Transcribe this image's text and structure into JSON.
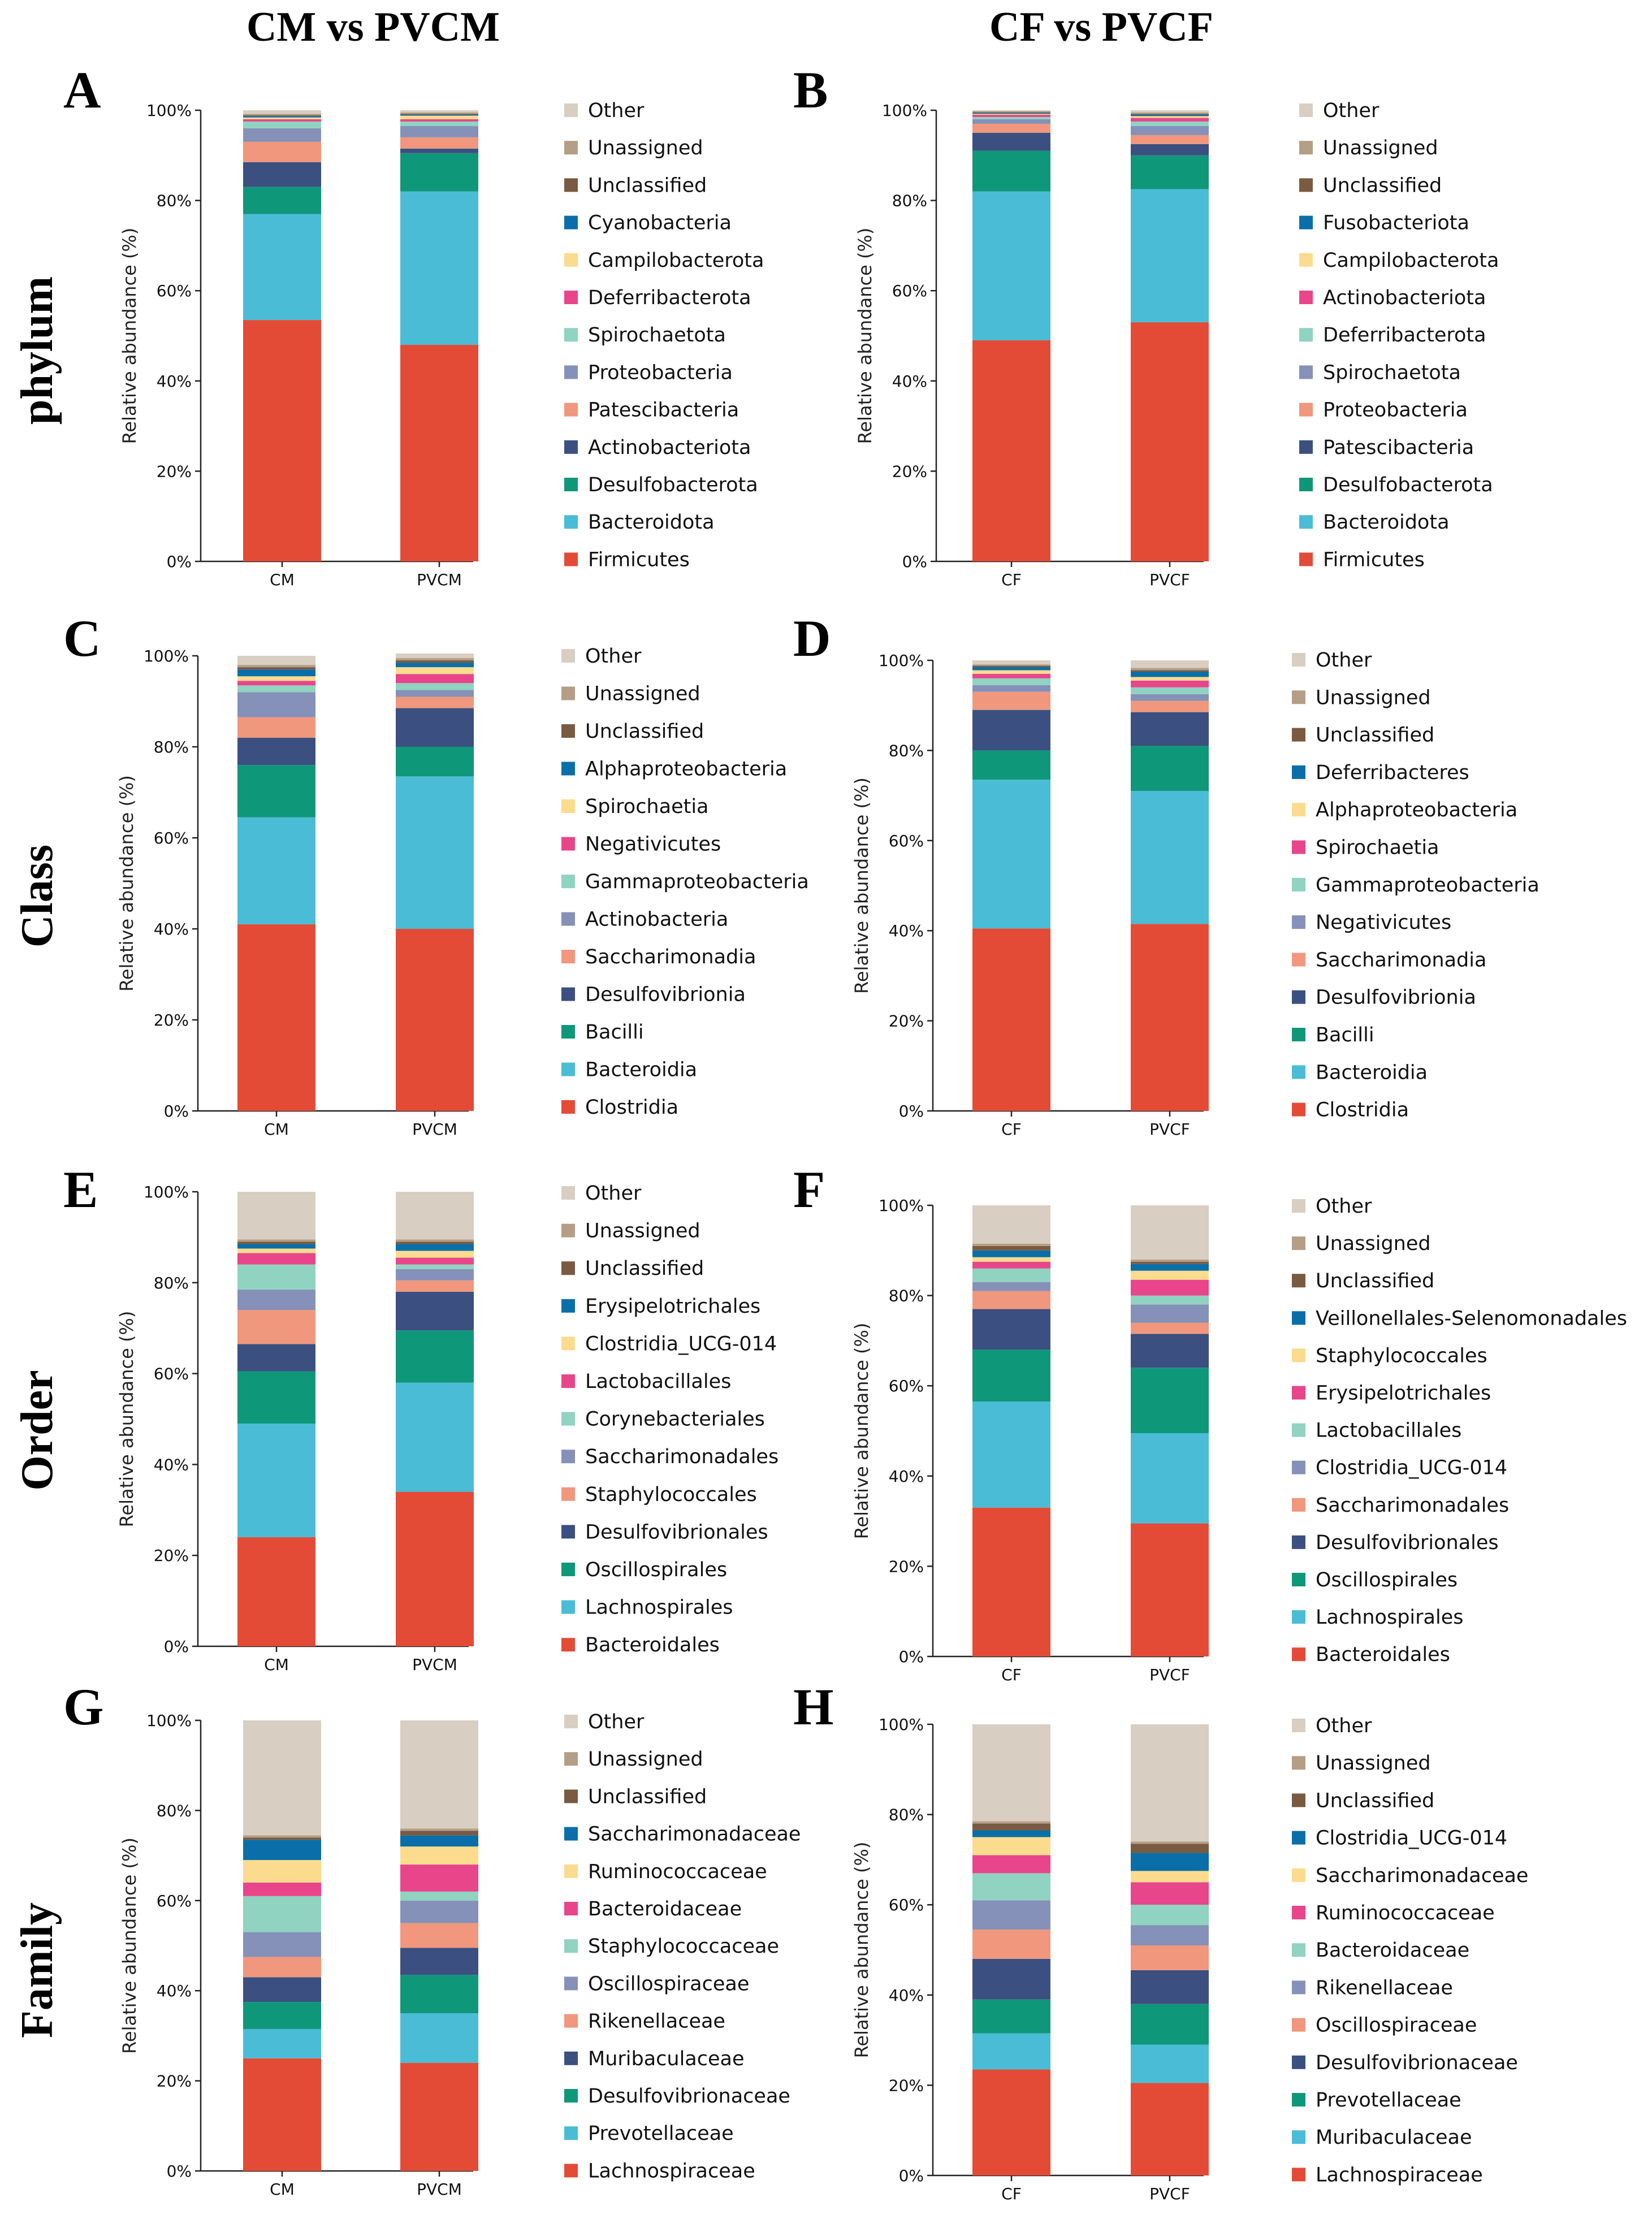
{
  "column_titles": [
    "CM vs PVCM",
    "CF vs PVCF"
  ],
  "row_labels": [
    "phylum",
    "Class",
    "Order",
    "Family"
  ],
  "colors": {
    "Other": "#d8cec1",
    "Unassigned": "#b59e86",
    "Unclassified": "#7a5a40",
    "c9": "#0a6fa8",
    "c8": "#fbdc8e",
    "c7": "#e8458b",
    "c6": "#8fd3c0",
    "c5": "#8591b8",
    "c4": "#f0977d",
    "c3": "#3b4f81",
    "c2": "#0f9779",
    "c1": "#4bbcd6",
    "c0": "#e34b37"
  },
  "chart_data": [
    {
      "panel": "A",
      "type": "bar",
      "stacked": true,
      "ylabel": "Relative abundance (%)",
      "yticks": [
        "0%",
        "20%",
        "40%",
        "60%",
        "80%",
        "100%"
      ],
      "ylim": [
        0,
        100
      ],
      "categories": [
        "CM",
        "PVCM"
      ],
      "series": [
        {
          "name": "Firmicutes",
          "values": [
            53.5,
            48.0
          ]
        },
        {
          "name": "Bacteroidota",
          "values": [
            23.5,
            34.0
          ]
        },
        {
          "name": "Desulfobacterota",
          "values": [
            6.0,
            8.5
          ]
        },
        {
          "name": "Actinobacteriota",
          "values": [
            5.5,
            1.0
          ]
        },
        {
          "name": "Patescibacteria",
          "values": [
            4.5,
            2.5
          ]
        },
        {
          "name": "Proteobacteria",
          "values": [
            3.0,
            2.5
          ]
        },
        {
          "name": "Spirochaetota",
          "values": [
            1.5,
            1.0
          ]
        },
        {
          "name": "Deferribacterota",
          "values": [
            0.5,
            0.5
          ]
        },
        {
          "name": "Campilobacterota",
          "values": [
            0.4,
            0.8
          ]
        },
        {
          "name": "Cyanobacteria",
          "values": [
            0.3,
            0.2
          ]
        },
        {
          "name": "Unclassified",
          "values": [
            0.2,
            0.2
          ]
        },
        {
          "name": "Unassigned",
          "values": [
            0.3,
            0.3
          ]
        },
        {
          "name": "Other",
          "values": [
            0.8,
            0.5
          ]
        }
      ]
    },
    {
      "panel": "B",
      "type": "bar",
      "stacked": true,
      "ylabel": "Relative abundance (%)",
      "yticks": [
        "0%",
        "20%",
        "40%",
        "60%",
        "80%",
        "100%"
      ],
      "ylim": [
        0,
        100
      ],
      "categories": [
        "CF",
        "PVCF"
      ],
      "series": [
        {
          "name": "Firmicutes",
          "values": [
            49.0,
            53.0
          ]
        },
        {
          "name": "Bacteroidota",
          "values": [
            33.0,
            29.5
          ]
        },
        {
          "name": "Desulfobacterota",
          "values": [
            9.0,
            7.5
          ]
        },
        {
          "name": "Patescibacteria",
          "values": [
            4.0,
            2.5
          ]
        },
        {
          "name": "Proteobacteria",
          "values": [
            2.0,
            2.0
          ]
        },
        {
          "name": "Spirochaetota",
          "values": [
            1.0,
            2.0
          ]
        },
        {
          "name": "Deferribacterota",
          "values": [
            0.5,
            1.0
          ]
        },
        {
          "name": "Actinobacteriota",
          "values": [
            0.5,
            0.8
          ]
        },
        {
          "name": "Campilobacterota",
          "values": [
            0.2,
            0.4
          ]
        },
        {
          "name": "Fusobacteriota",
          "values": [
            0.2,
            0.3
          ]
        },
        {
          "name": "Unclassified",
          "values": [
            0.2,
            0.2
          ]
        },
        {
          "name": "Unassigned",
          "values": [
            0.2,
            0.3
          ]
        },
        {
          "name": "Other",
          "values": [
            0.2,
            0.5
          ]
        }
      ]
    },
    {
      "panel": "C",
      "type": "bar",
      "stacked": true,
      "ylabel": "Relative abundance (%)",
      "yticks": [
        "0%",
        "20%",
        "40%",
        "60%",
        "80%",
        "100%"
      ],
      "ylim": [
        0,
        100
      ],
      "categories": [
        "CM",
        "PVCM"
      ],
      "series": [
        {
          "name": "Clostridia",
          "values": [
            41.0,
            40.0
          ]
        },
        {
          "name": "Bacteroidia",
          "values": [
            23.5,
            33.5
          ]
        },
        {
          "name": "Bacilli",
          "values": [
            11.5,
            6.5
          ]
        },
        {
          "name": "Desulfovibrionia",
          "values": [
            6.0,
            8.5
          ]
        },
        {
          "name": "Saccharimonadia",
          "values": [
            4.5,
            2.5
          ]
        },
        {
          "name": "Actinobacteria",
          "values": [
            5.5,
            1.5
          ]
        },
        {
          "name": "Gammaproteobacteria",
          "values": [
            1.5,
            1.5
          ]
        },
        {
          "name": "Negativicutes",
          "values": [
            1.0,
            2.0
          ]
        },
        {
          "name": "Spirochaetia",
          "values": [
            1.0,
            1.5
          ]
        },
        {
          "name": "Alphaproteobacteria",
          "values": [
            1.5,
            1.0
          ]
        },
        {
          "name": "Unclassified",
          "values": [
            0.5,
            0.5
          ]
        },
        {
          "name": "Unassigned",
          "values": [
            0.5,
            0.5
          ]
        },
        {
          "name": "Other",
          "values": [
            2.0,
            1.0
          ]
        }
      ]
    },
    {
      "panel": "D",
      "type": "bar",
      "stacked": true,
      "ylabel": "Relative abundance (%)",
      "yticks": [
        "0%",
        "20%",
        "40%",
        "60%",
        "80%",
        "100%"
      ],
      "ylim": [
        0,
        100
      ],
      "categories": [
        "CF",
        "PVCF"
      ],
      "series": [
        {
          "name": "Clostridia",
          "values": [
            40.5,
            41.5
          ]
        },
        {
          "name": "Bacteroidia",
          "values": [
            33.0,
            29.5
          ]
        },
        {
          "name": "Bacilli",
          "values": [
            6.5,
            10.0
          ]
        },
        {
          "name": "Desulfovibrionia",
          "values": [
            9.0,
            7.5
          ]
        },
        {
          "name": "Saccharimonadia",
          "values": [
            4.0,
            2.5
          ]
        },
        {
          "name": "Negativicutes",
          "values": [
            1.5,
            1.5
          ]
        },
        {
          "name": "Gammaproteobacteria",
          "values": [
            1.5,
            1.5
          ]
        },
        {
          "name": "Spirochaetia",
          "values": [
            1.0,
            1.5
          ]
        },
        {
          "name": "Alphaproteobacteria",
          "values": [
            0.8,
            0.8
          ]
        },
        {
          "name": "Deferribacteres",
          "values": [
            0.7,
            1.2
          ]
        },
        {
          "name": "Unclassified",
          "values": [
            0.3,
            0.3
          ]
        },
        {
          "name": "Unassigned",
          "values": [
            0.3,
            0.5
          ]
        },
        {
          "name": "Other",
          "values": [
            0.9,
            1.7
          ]
        }
      ]
    },
    {
      "panel": "E",
      "type": "bar",
      "stacked": true,
      "ylabel": "Relative abundance (%)",
      "yticks": [
        "0%",
        "20%",
        "40%",
        "60%",
        "80%",
        "100%"
      ],
      "ylim": [
        0,
        100
      ],
      "categories": [
        "CM",
        "PVCM"
      ],
      "series": [
        {
          "name": "Bacteroidales",
          "values": [
            24.0,
            34.0
          ]
        },
        {
          "name": "Lachnospirales",
          "values": [
            25.0,
            24.0
          ]
        },
        {
          "name": "Oscillospirales",
          "values": [
            11.5,
            11.5
          ]
        },
        {
          "name": "Desulfovibrionales",
          "values": [
            6.0,
            8.5
          ]
        },
        {
          "name": "Staphylococcales",
          "values": [
            7.5,
            2.5
          ]
        },
        {
          "name": "Saccharimonadales",
          "values": [
            4.5,
            2.5
          ]
        },
        {
          "name": "Corynebacteriales",
          "values": [
            5.5,
            1.0
          ]
        },
        {
          "name": "Lactobacillales",
          "values": [
            2.5,
            1.5
          ]
        },
        {
          "name": "Clostridia_UCG-014",
          "values": [
            1.0,
            1.5
          ]
        },
        {
          "name": "Erysipelotrichales",
          "values": [
            1.0,
            1.5
          ]
        },
        {
          "name": "Unclassified",
          "values": [
            0.5,
            0.5
          ]
        },
        {
          "name": "Unassigned",
          "values": [
            0.5,
            0.5
          ]
        },
        {
          "name": "Other",
          "values": [
            10.5,
            10.5
          ]
        }
      ]
    },
    {
      "panel": "F",
      "type": "bar",
      "stacked": true,
      "ylabel": "Relative abundance (%)",
      "yticks": [
        "0%",
        "20%",
        "40%",
        "60%",
        "80%",
        "100%"
      ],
      "ylim": [
        0,
        100
      ],
      "categories": [
        "CF",
        "PVCF"
      ],
      "series": [
        {
          "name": "Bacteroidales",
          "values": [
            33.0,
            29.5
          ]
        },
        {
          "name": "Lachnospirales",
          "values": [
            23.5,
            20.0
          ]
        },
        {
          "name": "Oscillospirales",
          "values": [
            11.5,
            14.5
          ]
        },
        {
          "name": "Desulfovibrionales",
          "values": [
            9.0,
            7.5
          ]
        },
        {
          "name": "Saccharimonadales",
          "values": [
            4.0,
            2.5
          ]
        },
        {
          "name": "Clostridia_UCG-014",
          "values": [
            2.0,
            4.0
          ]
        },
        {
          "name": "Lactobacillales",
          "values": [
            3.0,
            2.0
          ]
        },
        {
          "name": "Erysipelotrichales",
          "values": [
            1.5,
            3.5
          ]
        },
        {
          "name": "Staphylococcales",
          "values": [
            1.0,
            2.0
          ]
        },
        {
          "name": "Veillonellales-Selenomonadales",
          "values": [
            1.5,
            1.5
          ]
        },
        {
          "name": "Unclassified",
          "values": [
            1.0,
            0.5
          ]
        },
        {
          "name": "Unassigned",
          "values": [
            0.5,
            0.5
          ]
        },
        {
          "name": "Other",
          "values": [
            8.5,
            12.0
          ]
        }
      ]
    },
    {
      "panel": "G",
      "type": "bar",
      "stacked": true,
      "ylabel": "Relative abundance (%)",
      "yticks": [
        "0%",
        "20%",
        "40%",
        "60%",
        "80%",
        "100%"
      ],
      "ylim": [
        0,
        100
      ],
      "categories": [
        "CM",
        "PVCM"
      ],
      "series": [
        {
          "name": "Lachnospiraceae",
          "values": [
            25.0,
            24.0
          ]
        },
        {
          "name": "Prevotellaceae",
          "values": [
            6.5,
            11.0
          ]
        },
        {
          "name": "Desulfovibrionaceae",
          "values": [
            6.0,
            8.5
          ]
        },
        {
          "name": "Muribaculaceae",
          "values": [
            5.5,
            6.0
          ]
        },
        {
          "name": "Rikenellaceae",
          "values": [
            4.5,
            5.5
          ]
        },
        {
          "name": "Oscillospiraceae",
          "values": [
            5.5,
            5.0
          ]
        },
        {
          "name": "Staphylococcaceae",
          "values": [
            8.0,
            2.0
          ]
        },
        {
          "name": "Bacteroidaceae",
          "values": [
            3.0,
            6.0
          ]
        },
        {
          "name": "Ruminococcaceae",
          "values": [
            5.0,
            4.0
          ]
        },
        {
          "name": "Saccharimonadaceae",
          "values": [
            4.5,
            2.5
          ]
        },
        {
          "name": "Unclassified",
          "values": [
            0.5,
            1.0
          ]
        },
        {
          "name": "Unassigned",
          "values": [
            0.5,
            0.5
          ]
        },
        {
          "name": "Other",
          "values": [
            25.5,
            24.0
          ]
        }
      ]
    },
    {
      "panel": "H",
      "type": "bar",
      "stacked": true,
      "ylabel": "Relative abundance (%)",
      "yticks": [
        "0%",
        "20%",
        "40%",
        "60%",
        "80%",
        "100%"
      ],
      "ylim": [
        0,
        100
      ],
      "categories": [
        "CF",
        "PVCF"
      ],
      "series": [
        {
          "name": "Lachnospiraceae",
          "values": [
            23.5,
            20.5
          ]
        },
        {
          "name": "Muribaculaceae",
          "values": [
            8.0,
            8.5
          ]
        },
        {
          "name": "Prevotellaceae",
          "values": [
            7.5,
            9.0
          ]
        },
        {
          "name": "Desulfovibrionaceae",
          "values": [
            9.0,
            7.5
          ]
        },
        {
          "name": "Oscillospiraceae",
          "values": [
            6.5,
            5.5
          ]
        },
        {
          "name": "Rikenellaceae",
          "values": [
            6.5,
            4.5
          ]
        },
        {
          "name": "Bacteroidaceae",
          "values": [
            6.0,
            4.5
          ]
        },
        {
          "name": "Ruminococcaceae",
          "values": [
            4.0,
            5.0
          ]
        },
        {
          "name": "Saccharimonadaceae",
          "values": [
            4.0,
            2.5
          ]
        },
        {
          "name": "Clostridia_UCG-014",
          "values": [
            1.5,
            4.0
          ]
        },
        {
          "name": "Unclassified",
          "values": [
            1.5,
            2.0
          ]
        },
        {
          "name": "Unassigned",
          "values": [
            0.5,
            0.5
          ]
        },
        {
          "name": "Other",
          "values": [
            21.5,
            26.0
          ]
        }
      ]
    }
  ]
}
